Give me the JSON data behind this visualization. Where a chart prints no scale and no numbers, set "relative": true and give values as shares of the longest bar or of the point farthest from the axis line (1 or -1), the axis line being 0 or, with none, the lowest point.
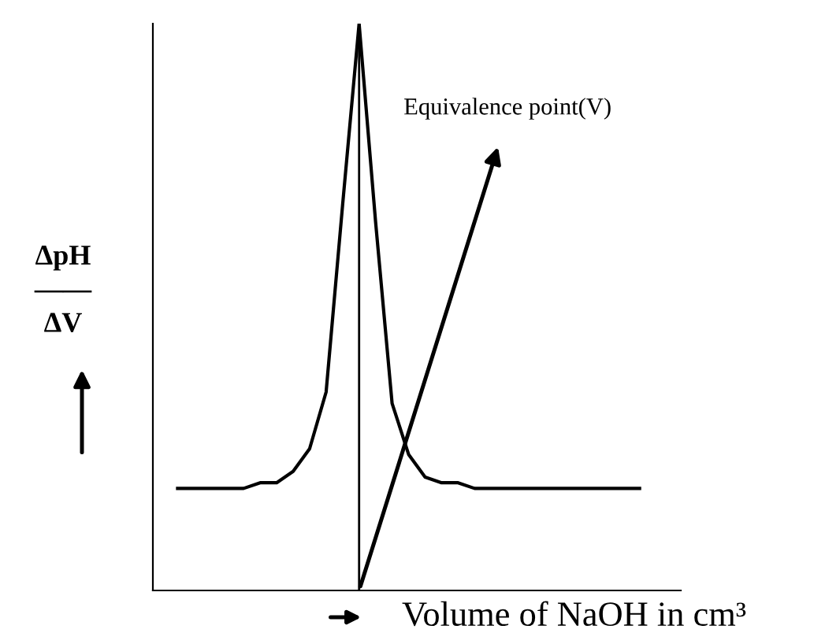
{
  "chart_data": {
    "type": "line",
    "relative": true,
    "xlabel": "Volume of NaOH in cm³",
    "ylabel": "ΔpH\n——\nΔV",
    "categories": [
      null,
      null,
      null,
      null,
      null,
      null,
      null,
      null,
      null,
      null,
      null,
      null,
      null,
      null,
      null,
      null,
      null,
      null,
      null,
      null,
      null,
      null,
      null,
      null,
      null,
      null,
      null,
      null,
      null
    ],
    "series": [
      {
        "color": "#000000",
        "values": [
          0.18,
          0.18,
          0.18,
          0.18,
          0.18,
          0.19,
          0.19,
          0.21,
          0.25,
          0.35,
          0.68,
          1.0,
          0.65,
          0.33,
          0.24,
          0.2,
          0.19,
          0.19,
          0.18,
          0.18,
          0.18,
          0.18,
          0.18,
          0.18,
          0.18,
          0.18,
          0.18,
          0.18,
          0.18
        ]
      }
    ],
    "annotations": [
      "Equivalence point(V)"
    ],
    "grid": false,
    "legend": false,
    "marker": "none",
    "line_style": "solid"
  }
}
